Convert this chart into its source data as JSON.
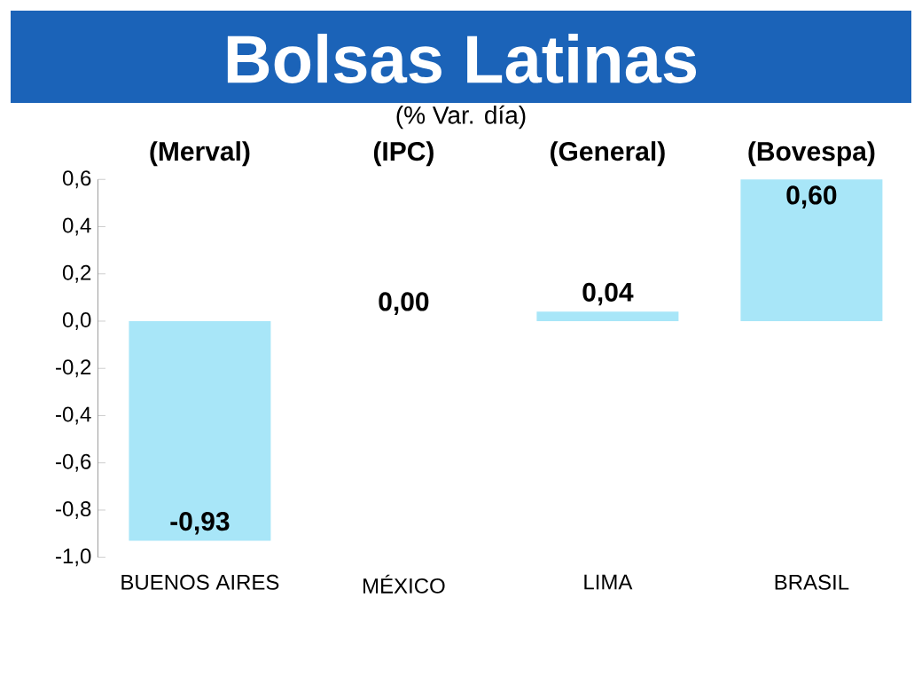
{
  "chart_data": {
    "type": "bar",
    "title": "Bolsas Latinas",
    "subtitle": "(% Var. día)",
    "categories": [
      "BUENOS AIRES",
      "MÉXICO",
      "LIMA",
      "BRASIL"
    ],
    "values": [
      -0.93,
      0.0,
      0.04,
      0.6
    ],
    "value_labels": [
      "-0,93",
      "0,00",
      "0,04",
      "0,60"
    ],
    "color": "#a8e6f8",
    "annotations": [
      "(Merval)",
      "(IPC)",
      "(General)",
      "(Bovespa)"
    ],
    "ylim": [
      -1.0,
      0.6
    ],
    "yticks": [
      {
        "value": -1.0,
        "label": "-1,0"
      },
      {
        "value": -0.8,
        "label": "-0,8"
      },
      {
        "value": -0.6,
        "label": "-0,6"
      },
      {
        "value": -0.4,
        "label": "-0,4"
      },
      {
        "value": -0.2,
        "label": "-0,2"
      },
      {
        "value": 0.0,
        "label": "0,0"
      },
      {
        "value": 0.2,
        "label": "0,2"
      },
      {
        "value": 0.4,
        "label": "0,4"
      },
      {
        "value": 0.6,
        "label": "0,6"
      }
    ]
  }
}
